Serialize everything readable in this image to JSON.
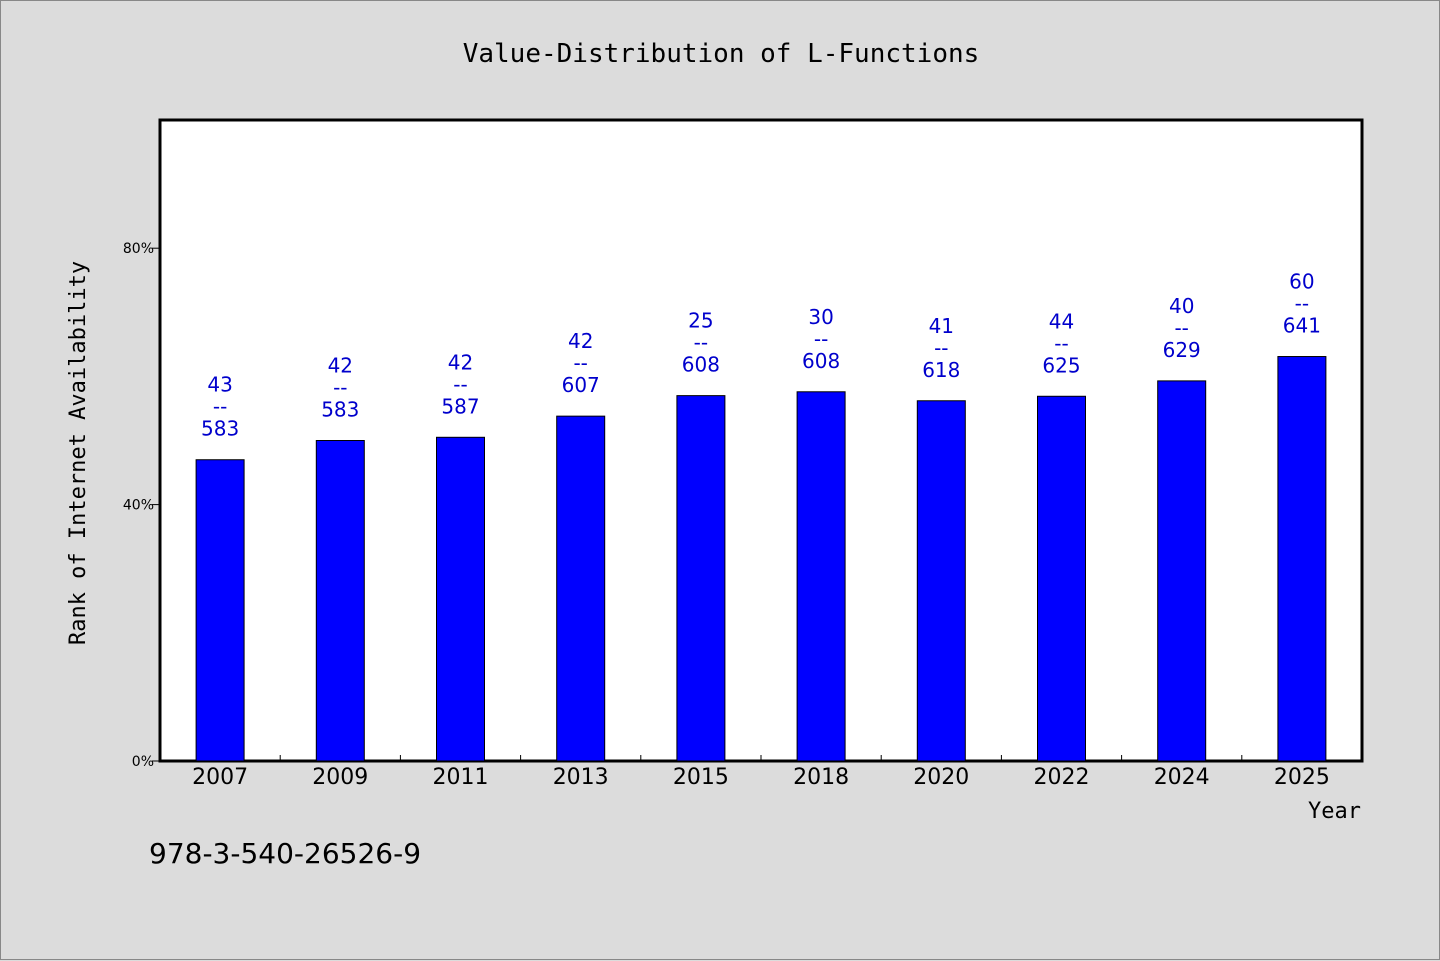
{
  "chart_data": {
    "type": "bar",
    "title": "Value-Distribution of L-Functions",
    "xlabel": "Year",
    "ylabel": "Rank of Internet Availability",
    "categories": [
      "2007",
      "2009",
      "2011",
      "2013",
      "2015",
      "2018",
      "2020",
      "2022",
      "2024",
      "2025"
    ],
    "values": [
      47.0,
      50.0,
      50.5,
      53.8,
      57.0,
      57.6,
      56.2,
      56.9,
      59.3,
      63.1
    ],
    "labels_top": [
      "43",
      "42",
      "42",
      "42",
      "25",
      "30",
      "41",
      "44",
      "40",
      "60"
    ],
    "labels_sep": "--",
    "labels_bottom": [
      "583",
      "583",
      "587",
      "607",
      "608",
      "608",
      "618",
      "625",
      "629",
      "641"
    ],
    "ylim": [
      0,
      100
    ],
    "yticks": [
      0,
      40,
      80
    ],
    "ytick_labels": [
      "0%",
      "40%",
      "80%"
    ],
    "grid": false,
    "bar_color": "#0000ff",
    "label_color": "#0000cc"
  },
  "footnote": "978-3-540-26526-9"
}
